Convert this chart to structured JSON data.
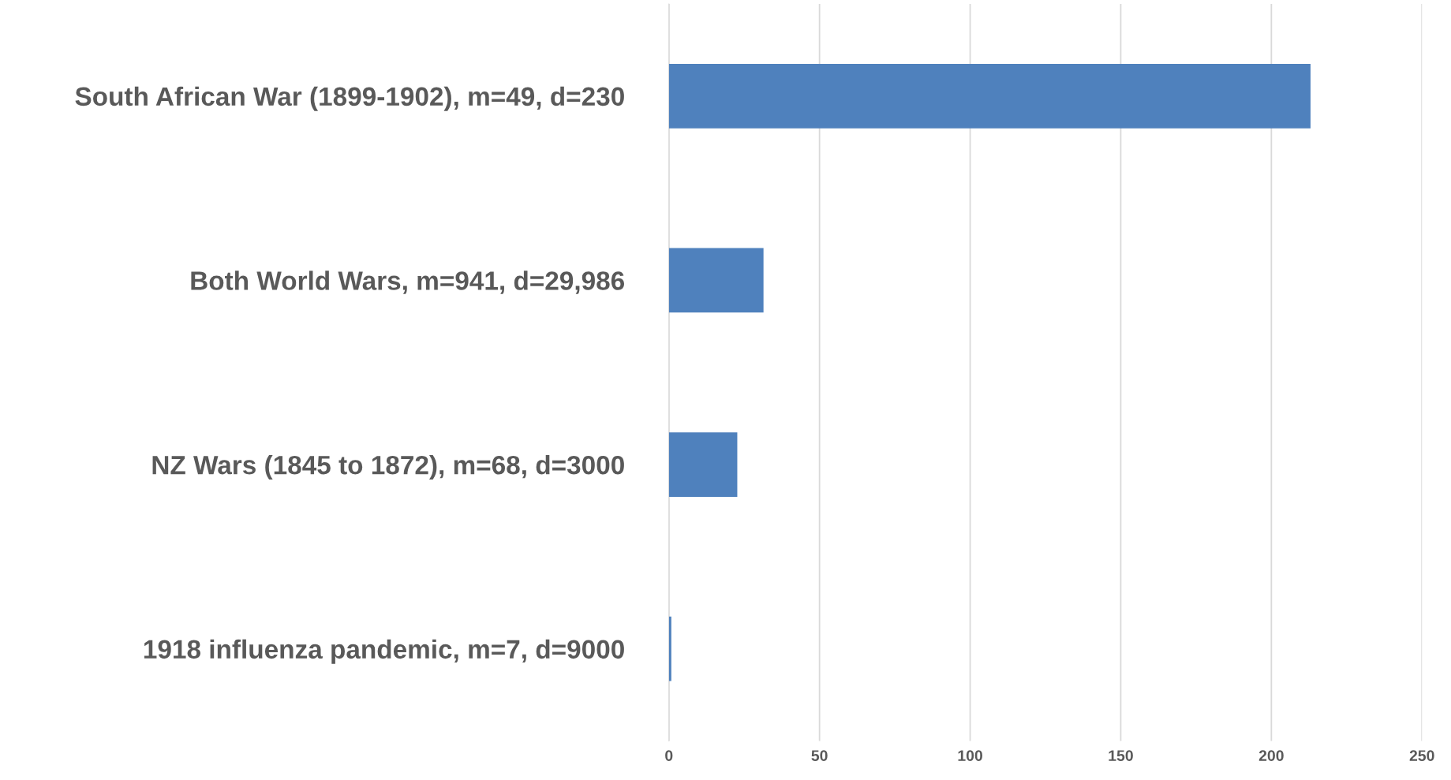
{
  "chart_data": {
    "type": "bar",
    "orientation": "horizontal",
    "categories": [
      "South African War (1899-1902), m=49, d=230",
      "Both World Wars, m=941, d=29,986",
      "NZ Wars (1845 to 1872), m=68, d=3000",
      "1918 influenza pandemic, m=7, d=9000"
    ],
    "values": [
      213,
      31.4,
      22.7,
      0.8
    ],
    "color": "#4f81bd",
    "xlim": [
      0,
      250
    ],
    "xticks": [
      0,
      50,
      100,
      150,
      200,
      250
    ],
    "grid": "x"
  }
}
